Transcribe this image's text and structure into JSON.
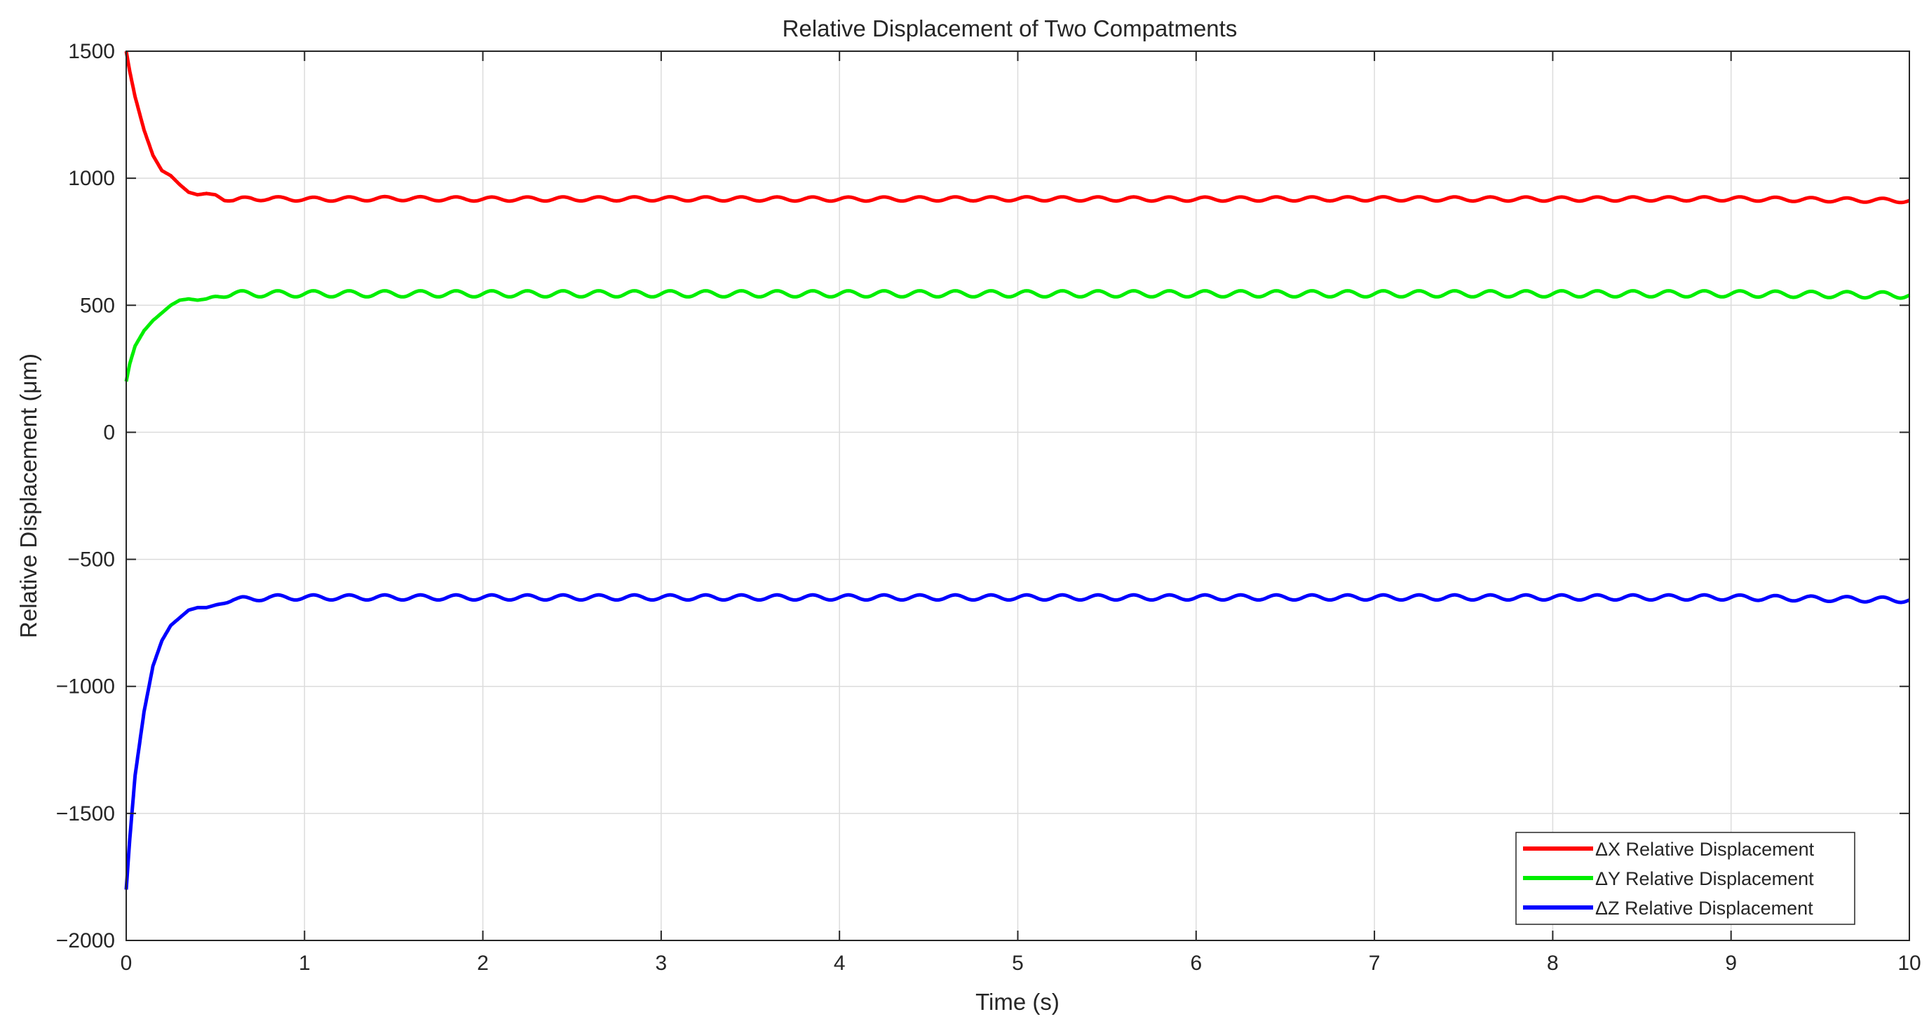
{
  "chart_data": {
    "type": "line",
    "title": "Relative Displacement of Two Compatments",
    "xlabel": "Time (s)",
    "ylabel": "Relative Displacement (μm)",
    "xlim": [
      0,
      10
    ],
    "ylim": [
      -2000,
      1500
    ],
    "xticks": [
      0,
      1,
      2,
      3,
      4,
      5,
      6,
      7,
      8,
      9,
      10
    ],
    "xtick_labels": [
      "0",
      "1",
      "2",
      "3",
      "4",
      "5",
      "6",
      "7",
      "8",
      "9",
      "10"
    ],
    "yticks": [
      -2000,
      -1500,
      -1000,
      -500,
      0,
      500,
      1000,
      1500
    ],
    "ytick_labels": [
      "−2000",
      "−1500",
      "−1000",
      "−500",
      "0",
      "500",
      "1000",
      "1500"
    ],
    "grid": true,
    "legend_position": "bottom-right",
    "series": [
      {
        "name": "ΔX Relative Displacement",
        "color": "#ff0000",
        "x": [
          0,
          0.02,
          0.05,
          0.1,
          0.15,
          0.2,
          0.25,
          0.3,
          0.35,
          0.4,
          0.45,
          0.5,
          0.55,
          0.6,
          0.7,
          0.8,
          0.9,
          1.0,
          1.5,
          2,
          3,
          4,
          5,
          6,
          7,
          8,
          9,
          10
        ],
        "y": [
          1500,
          1420,
          1320,
          1190,
          1090,
          1030,
          1010,
          975,
          945,
          935,
          940,
          935,
          915,
          912,
          922,
          918,
          920,
          917,
          920,
          918,
          919,
          918,
          919,
          918,
          919,
          918,
          919,
          912
        ],
        "oscillation": {
          "period": 0.2,
          "amplitude": 8,
          "from": 0.5
        }
      },
      {
        "name": "ΔY Relative Displacement",
        "color": "#00ee00",
        "x": [
          0,
          0.02,
          0.05,
          0.1,
          0.15,
          0.2,
          0.25,
          0.3,
          0.35,
          0.4,
          0.45,
          0.5,
          0.6,
          0.8,
          1.0,
          1.5,
          2,
          3,
          4,
          5,
          6,
          7,
          8,
          9,
          10
        ],
        "y": [
          200,
          270,
          340,
          400,
          440,
          470,
          500,
          520,
          525,
          520,
          525,
          535,
          545,
          545,
          545,
          545,
          545,
          545,
          545,
          545,
          545,
          545,
          545,
          545,
          540
        ],
        "oscillation": {
          "period": 0.2,
          "amplitude": 12,
          "from": 0.45
        }
      },
      {
        "name": "ΔZ Relative Displacement",
        "color": "#0000ff",
        "x": [
          0,
          0.02,
          0.05,
          0.1,
          0.15,
          0.2,
          0.25,
          0.3,
          0.35,
          0.4,
          0.45,
          0.5,
          0.6,
          0.8,
          1.0,
          1.5,
          2,
          3,
          4,
          5,
          6,
          7,
          8,
          9,
          10
        ],
        "y": [
          -1800,
          -1600,
          -1350,
          -1100,
          -920,
          -820,
          -760,
          -730,
          -700,
          -690,
          -690,
          -680,
          -660,
          -650,
          -650,
          -650,
          -650,
          -650,
          -650,
          -650,
          -650,
          -650,
          -650,
          -650,
          -660
        ],
        "oscillation": {
          "period": 0.2,
          "amplitude": 10,
          "from": 0.5
        }
      }
    ]
  }
}
